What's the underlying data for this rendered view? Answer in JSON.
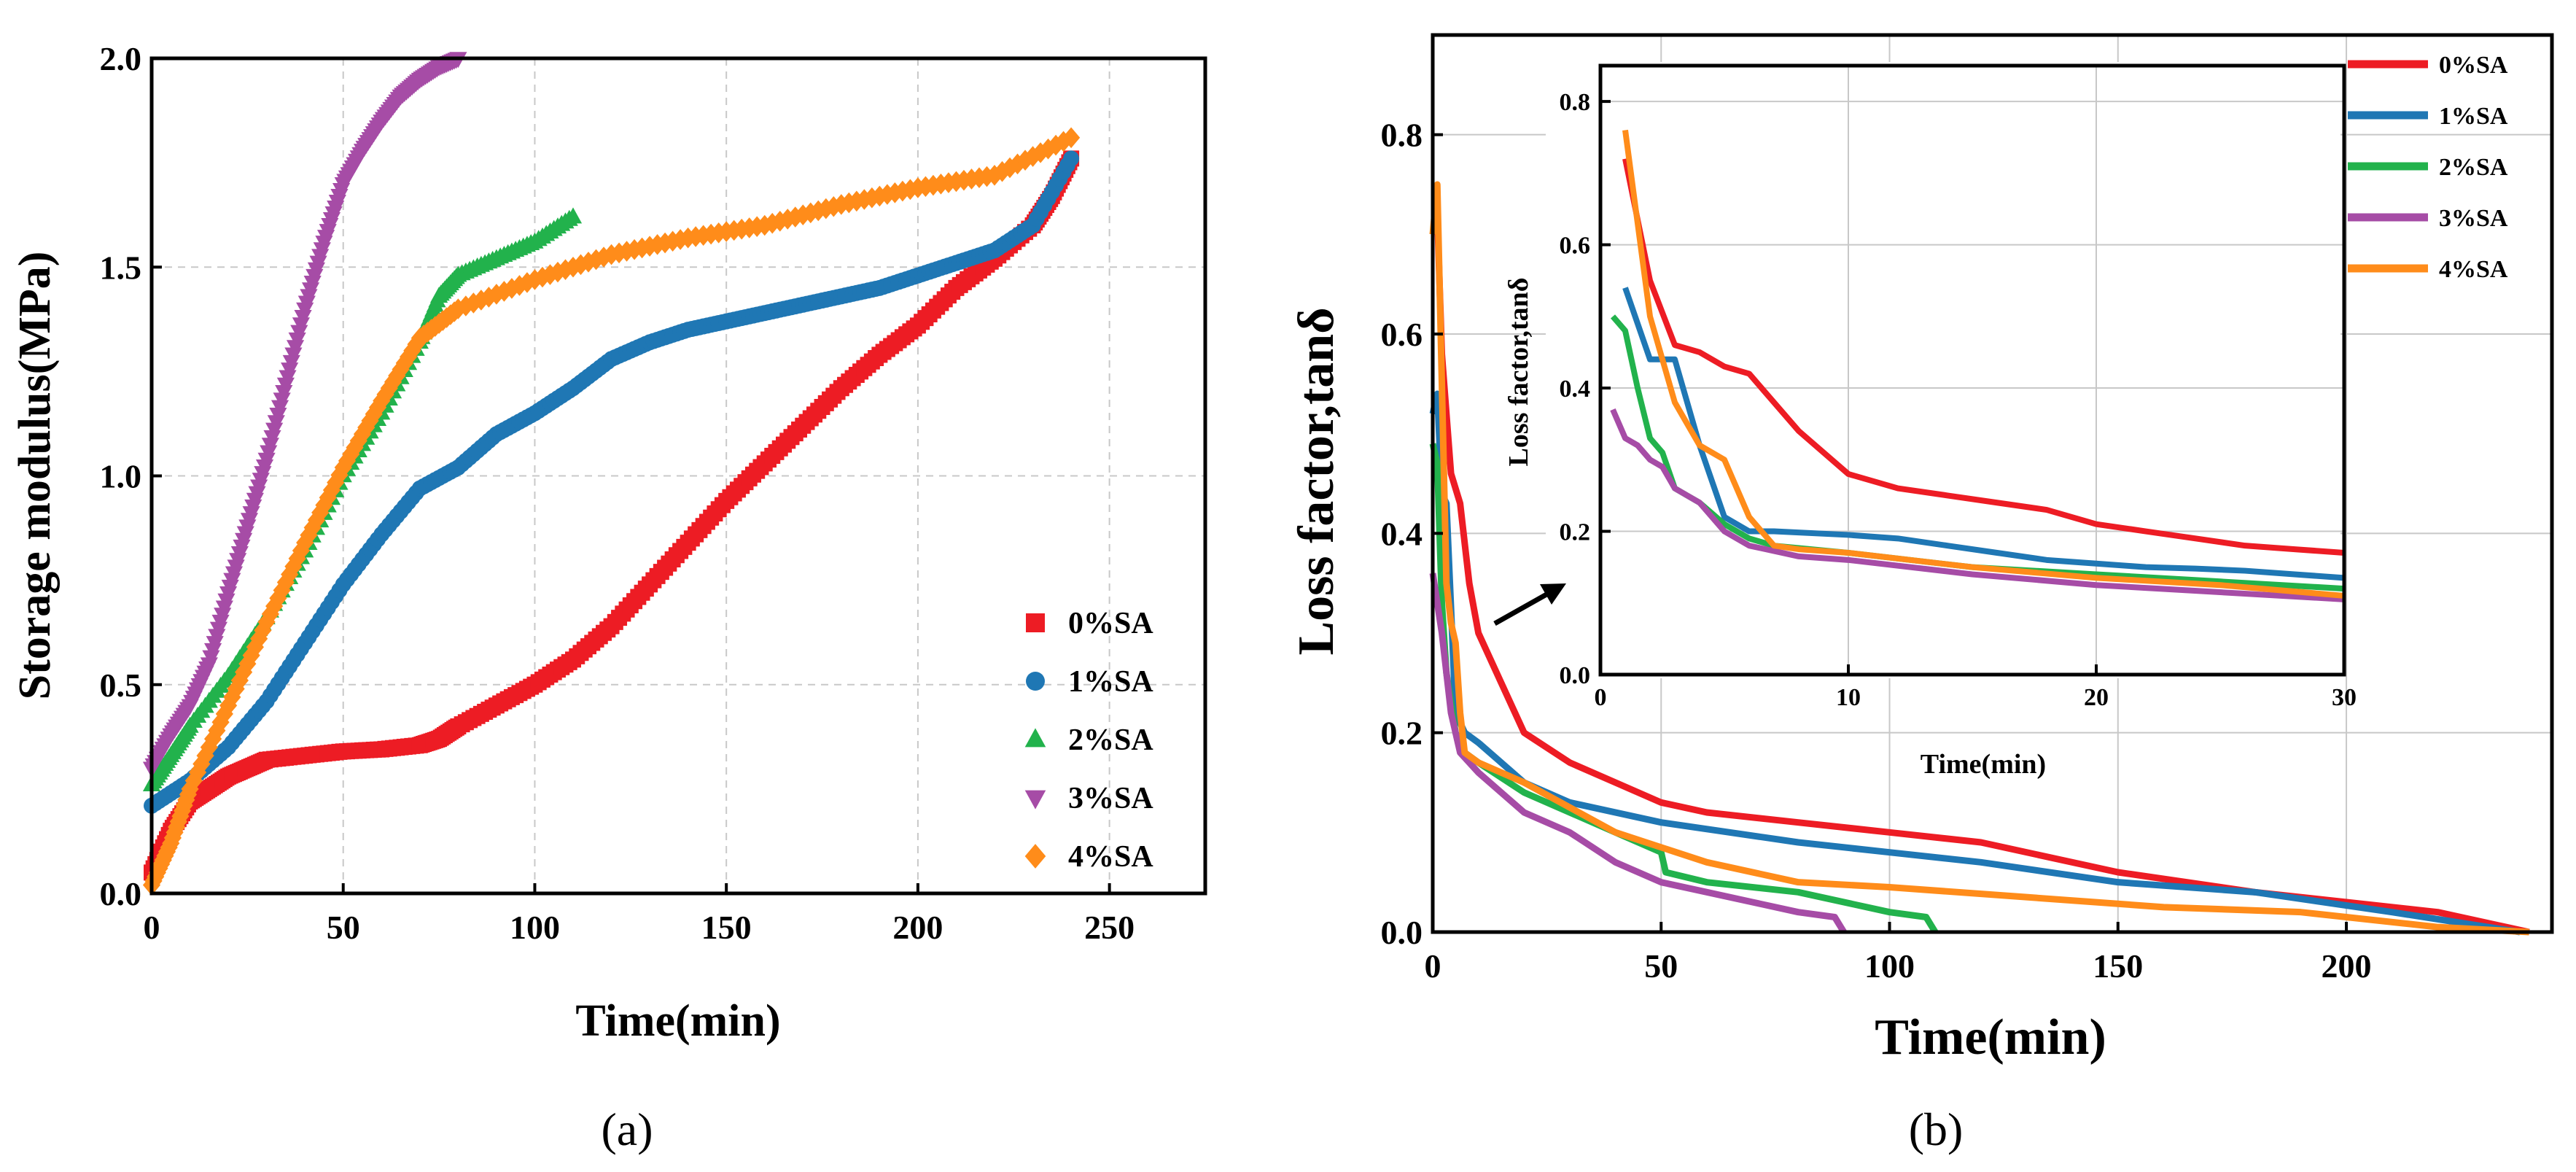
{
  "chart_data": [
    {
      "type": "scatter",
      "panel": "a",
      "caption": "(a)",
      "xlabel": "Time(min)",
      "ylabel": "Storage modulus(MPa)",
      "xlim": [
        0,
        275
      ],
      "ylim": [
        0,
        2.0
      ],
      "xticks": [
        "0",
        "50",
        "100",
        "150",
        "200",
        "250"
      ],
      "yticks": [
        "0.0",
        "0.5",
        "1.0",
        "1.5",
        "2.0"
      ],
      "grid": true,
      "legend_position": "lower-right",
      "series": [
        {
          "name": "0%SA",
          "color": "#ed1c24",
          "marker": "square",
          "x": [
            0,
            5,
            10,
            15,
            20,
            25,
            30,
            40,
            50,
            60,
            70,
            75,
            80,
            90,
            100,
            110,
            120,
            130,
            140,
            150,
            160,
            170,
            180,
            190,
            200,
            210,
            220,
            230,
            235,
            240
          ],
          "y": [
            0.05,
            0.15,
            0.22,
            0.25,
            0.28,
            0.3,
            0.32,
            0.33,
            0.34,
            0.345,
            0.355,
            0.37,
            0.4,
            0.45,
            0.5,
            0.56,
            0.64,
            0.74,
            0.84,
            0.94,
            1.03,
            1.12,
            1.21,
            1.29,
            1.36,
            1.45,
            1.52,
            1.6,
            1.67,
            1.76
          ]
        },
        {
          "name": "1%SA",
          "color": "#1f77b4",
          "marker": "circle",
          "x": [
            0,
            10,
            20,
            30,
            40,
            50,
            60,
            70,
            80,
            90,
            100,
            110,
            120,
            130,
            140,
            150,
            160,
            170,
            180,
            190,
            200,
            210,
            220,
            230,
            240
          ],
          "y": [
            0.21,
            0.27,
            0.35,
            0.46,
            0.6,
            0.74,
            0.86,
            0.97,
            1.02,
            1.1,
            1.15,
            1.21,
            1.28,
            1.32,
            1.35,
            1.37,
            1.39,
            1.41,
            1.43,
            1.45,
            1.48,
            1.51,
            1.54,
            1.6,
            1.76
          ]
        },
        {
          "name": "2%SA",
          "color": "#22b24c",
          "marker": "triangle-up",
          "x": [
            0,
            5,
            10,
            20,
            30,
            40,
            50,
            60,
            70,
            75,
            80,
            90,
            100,
            110
          ],
          "y": [
            0.26,
            0.33,
            0.4,
            0.52,
            0.66,
            0.82,
            1.0,
            1.15,
            1.32,
            1.43,
            1.48,
            1.52,
            1.56,
            1.62
          ]
        },
        {
          "name": "3%SA",
          "color": "#a64ca6",
          "marker": "triangle-down",
          "x": [
            0,
            5,
            10,
            15,
            20,
            25,
            30,
            35,
            40,
            45,
            50,
            55,
            60,
            65,
            70,
            75,
            80
          ],
          "y": [
            0.3,
            0.38,
            0.45,
            0.55,
            0.72,
            0.88,
            1.04,
            1.22,
            1.4,
            1.56,
            1.7,
            1.78,
            1.85,
            1.91,
            1.95,
            1.98,
            2.0
          ]
        },
        {
          "name": "4%SA",
          "color": "#ff8c1a",
          "marker": "diamond",
          "x": [
            0,
            5,
            10,
            20,
            30,
            40,
            50,
            60,
            70,
            80,
            100,
            120,
            140,
            160,
            180,
            200,
            220,
            240
          ],
          "y": [
            0.02,
            0.12,
            0.25,
            0.45,
            0.65,
            0.84,
            1.02,
            1.18,
            1.33,
            1.4,
            1.47,
            1.53,
            1.57,
            1.6,
            1.65,
            1.69,
            1.72,
            1.81
          ]
        }
      ]
    },
    {
      "type": "line",
      "panel": "b",
      "caption": "(b)",
      "xlabel": "Time(min)",
      "ylabel": "Loss factor,tanδ",
      "xlim": [
        0,
        245
      ],
      "ylim": [
        0,
        0.9
      ],
      "xticks": [
        "0",
        "50",
        "100",
        "150",
        "200"
      ],
      "yticks": [
        "0.0",
        "0.2",
        "0.4",
        "0.6",
        "0.8"
      ],
      "grid": true,
      "legend_position": "top-right",
      "series": [
        {
          "name": "0%SA",
          "color": "#ed1c24",
          "x": [
            0,
            1,
            2,
            4,
            6,
            8,
            10,
            15,
            20,
            30,
            40,
            50,
            60,
            80,
            100,
            120,
            150,
            180,
            200,
            220,
            240
          ],
          "y": [
            0.7,
            0.72,
            0.58,
            0.46,
            0.43,
            0.35,
            0.3,
            0.25,
            0.2,
            0.17,
            0.15,
            0.13,
            0.12,
            0.11,
            0.1,
            0.09,
            0.06,
            0.04,
            0.03,
            0.02,
            0.0
          ]
        },
        {
          "name": "1%SA",
          "color": "#1f77b4",
          "x": [
            0,
            1,
            2,
            3,
            5,
            7,
            10,
            20,
            30,
            50,
            80,
            100,
            120,
            150,
            180,
            210,
            238
          ],
          "y": [
            0.52,
            0.54,
            0.44,
            0.43,
            0.22,
            0.2,
            0.19,
            0.15,
            0.13,
            0.11,
            0.09,
            0.08,
            0.07,
            0.05,
            0.04,
            0.02,
            0.0
          ]
        },
        {
          "name": "2%SA",
          "color": "#22b24c",
          "x": [
            0,
            1,
            2,
            3,
            5,
            7,
            10,
            20,
            30,
            40,
            50,
            51,
            60,
            80,
            100,
            108,
            110
          ],
          "y": [
            0.49,
            0.47,
            0.33,
            0.26,
            0.2,
            0.18,
            0.17,
            0.14,
            0.12,
            0.1,
            0.08,
            0.06,
            0.05,
            0.04,
            0.02,
            0.015,
            0.0
          ]
        },
        {
          "name": "3%SA",
          "color": "#a64ca6",
          "x": [
            0,
            1,
            2,
            4,
            6,
            10,
            20,
            30,
            40,
            50,
            60,
            70,
            80,
            88,
            90
          ],
          "y": [
            0.36,
            0.33,
            0.3,
            0.22,
            0.18,
            0.16,
            0.12,
            0.1,
            0.07,
            0.05,
            0.04,
            0.03,
            0.02,
            0.015,
            0.0
          ]
        },
        {
          "name": "4%SA",
          "color": "#ff8c1a",
          "x": [
            0,
            1,
            2,
            3,
            4,
            5,
            6,
            7,
            10,
            20,
            40,
            60,
            80,
            100,
            130,
            160,
            190,
            220,
            240
          ],
          "y": [
            0.7,
            0.75,
            0.55,
            0.35,
            0.31,
            0.29,
            0.22,
            0.18,
            0.17,
            0.15,
            0.1,
            0.07,
            0.05,
            0.045,
            0.035,
            0.025,
            0.02,
            0.005,
            0.0
          ]
        }
      ],
      "inset": {
        "xlabel": "Time(min)",
        "ylabel": "Loss factor,tanδ",
        "xlim": [
          0,
          30
        ],
        "ylim": [
          0,
          0.85
        ],
        "xticks": [
          "0",
          "10",
          "20",
          "30"
        ],
        "yticks": [
          "0.0",
          "0.2",
          "0.4",
          "0.6",
          "0.8"
        ],
        "series": [
          {
            "name": "0%SA",
            "color": "#ed1c24",
            "x": [
              1,
              2,
              3,
              4,
              5,
              6,
              7,
              8,
              10,
              12,
              14,
              16,
              18,
              20,
              22,
              24,
              26,
              28,
              30
            ],
            "y": [
              0.72,
              0.55,
              0.46,
              0.45,
              0.43,
              0.42,
              0.38,
              0.34,
              0.28,
              0.26,
              0.25,
              0.24,
              0.23,
              0.21,
              0.2,
              0.19,
              0.18,
              0.175,
              0.17
            ]
          },
          {
            "name": "1%SA",
            "color": "#1f77b4",
            "x": [
              1,
              2,
              3,
              4,
              5,
              6,
              7,
              10,
              12,
              14,
              16,
              18,
              20,
              22,
              24,
              26,
              28,
              30
            ],
            "y": [
              0.54,
              0.44,
              0.44,
              0.32,
              0.22,
              0.2,
              0.2,
              0.195,
              0.19,
              0.18,
              0.17,
              0.16,
              0.155,
              0.15,
              0.148,
              0.145,
              0.14,
              0.135
            ]
          },
          {
            "name": "2%SA",
            "color": "#22b24c",
            "x": [
              0.5,
              1,
              1.5,
              2,
              2.5,
              3,
              3.5,
              4,
              5,
              6,
              7,
              10,
              15,
              20,
              25,
              30
            ],
            "y": [
              0.5,
              0.48,
              0.4,
              0.33,
              0.31,
              0.26,
              0.25,
              0.24,
              0.21,
              0.19,
              0.18,
              0.17,
              0.15,
              0.14,
              0.13,
              0.12
            ]
          },
          {
            "name": "3%SA",
            "color": "#a64ca6",
            "x": [
              0.5,
              1,
              1.5,
              2,
              2.5,
              3,
              3.5,
              4,
              5,
              6,
              8,
              10,
              15,
              20,
              25,
              30
            ],
            "y": [
              0.37,
              0.33,
              0.32,
              0.3,
              0.29,
              0.26,
              0.25,
              0.24,
              0.2,
              0.18,
              0.165,
              0.16,
              0.14,
              0.125,
              0.115,
              0.105
            ]
          },
          {
            "name": "4%SA",
            "color": "#ff8c1a",
            "x": [
              1,
              2,
              3,
              4,
              5,
              6,
              7,
              8,
              10,
              15,
              20,
              25,
              30
            ],
            "y": [
              0.76,
              0.5,
              0.38,
              0.32,
              0.3,
              0.22,
              0.18,
              0.175,
              0.17,
              0.15,
              0.135,
              0.125,
              0.11
            ]
          }
        ]
      }
    }
  ]
}
